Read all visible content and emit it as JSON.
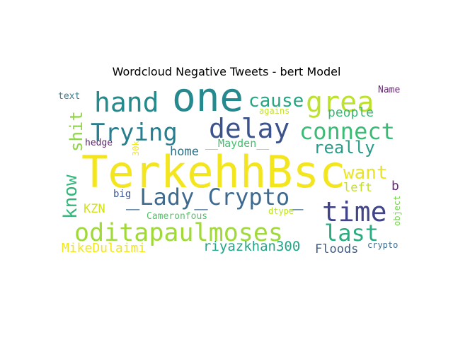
{
  "chart_data": {
    "type": "wordcloud",
    "title": "Wordcloud Negative Tweets - bert Model",
    "words": [
      {
        "text": "TerkehhBsc",
        "color": "#f4e61e"
      },
      {
        "text": "one",
        "color": "#26898e"
      },
      {
        "text": "grea",
        "color": "#bde22d"
      },
      {
        "text": "hand",
        "color": "#238a8d"
      },
      {
        "text": "delay",
        "color": "#3b528b"
      },
      {
        "text": "Trying",
        "color": "#287d8e"
      },
      {
        "text": "connect",
        "color": "#3bbb75"
      },
      {
        "text": "cause",
        "color": "#24a884"
      },
      {
        "text": "time",
        "color": "#414487"
      },
      {
        "text": "_Lady_Crypto_",
        "color": "#3e6a8f"
      },
      {
        "text": "oditapaulmoses",
        "color": "#a0da39"
      },
      {
        "text": "last",
        "color": "#27ad81"
      },
      {
        "text": "really",
        "color": "#2a9b8a"
      },
      {
        "text": "want",
        "color": "#e8e525"
      },
      {
        "text": "know",
        "color": "#33b679"
      },
      {
        "text": "shit",
        "color": "#8ed645"
      },
      {
        "text": "people",
        "color": "#3bb776"
      },
      {
        "text": "riyazkhan300",
        "color": "#21a586"
      },
      {
        "text": "__Mayden__",
        "color": "#45bf70"
      },
      {
        "text": "home",
        "color": "#2c738e"
      },
      {
        "text": "MikeDulaimi",
        "color": "#f1e51d"
      },
      {
        "text": "Floods",
        "color": "#3e5c8a"
      },
      {
        "text": "left",
        "color": "#c2df23"
      },
      {
        "text": "KZN",
        "color": "#d5e21a"
      },
      {
        "text": "b",
        "color": "#6a2a7a"
      },
      {
        "text": "big",
        "color": "#3d5791"
      },
      {
        "text": "Cameronfous",
        "color": "#52c569"
      },
      {
        "text": "Name",
        "color": "#6b2b77"
      },
      {
        "text": "text",
        "color": "#3a7b8e"
      },
      {
        "text": "hedge",
        "color": "#64207a"
      },
      {
        "text": "agains",
        "color": "#c5e031"
      },
      {
        "text": "30k",
        "color": "#f0e61d"
      },
      {
        "text": "dtype",
        "color": "#bde22a"
      },
      {
        "text": "crypto",
        "color": "#3f6c8e"
      },
      {
        "text": "object",
        "color": "#79d151"
      }
    ]
  }
}
